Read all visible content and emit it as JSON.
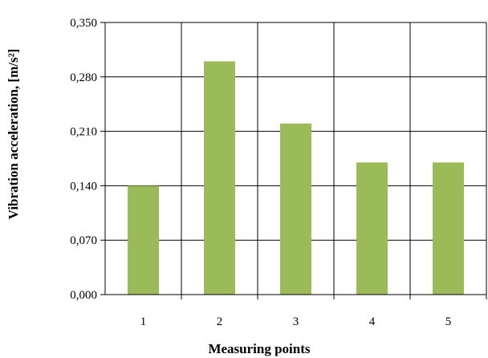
{
  "chart_data": {
    "type": "bar",
    "title": "",
    "xlabel": "Measuring points",
    "ylabel": "Vibration acceleration, [m/s²]",
    "categories": [
      "1",
      "2",
      "3",
      "4",
      "5"
    ],
    "values": [
      0.14,
      0.3,
      0.22,
      0.17,
      0.17
    ],
    "ylim": [
      0,
      0.35
    ],
    "yticks": [
      "0,000",
      "0,070",
      "0,140",
      "0,210",
      "0,280",
      "0,350"
    ],
    "grid": true,
    "legend": "none",
    "bar_color": "#9bbb59"
  }
}
